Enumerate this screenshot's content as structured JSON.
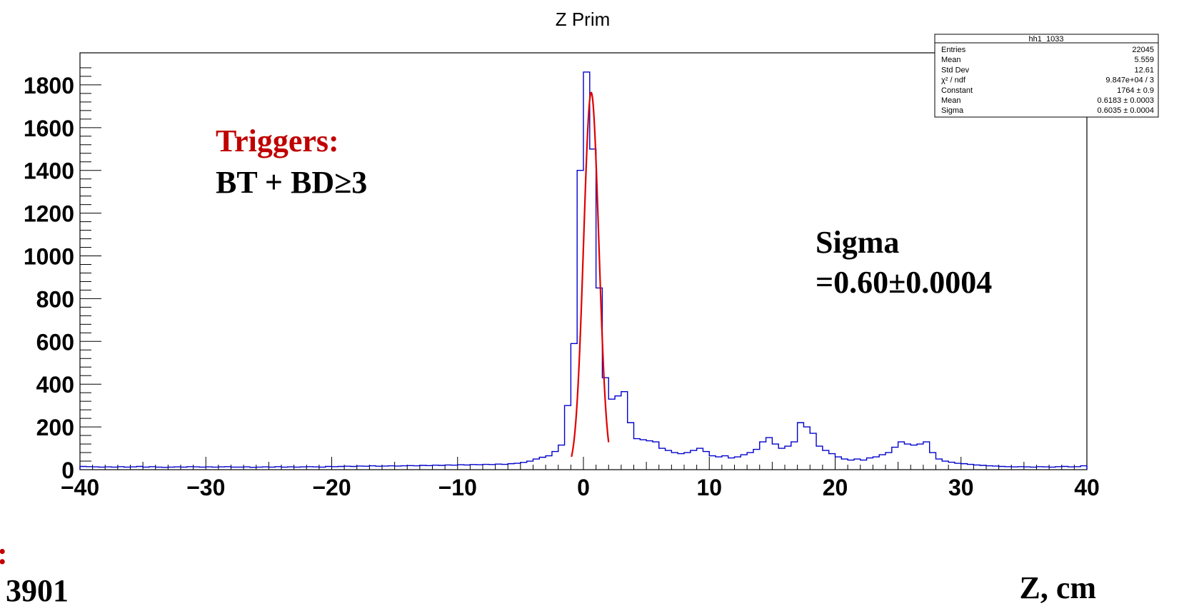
{
  "chart_data": {
    "type": "histogram",
    "title": "Z Prim",
    "xlabel": "Z, cm",
    "ylabel": "",
    "xlim": [
      -40,
      40
    ],
    "ylim": [
      0,
      1950
    ],
    "x_ticks": [
      -40,
      -30,
      -20,
      -10,
      0,
      10,
      20,
      30,
      40
    ],
    "x_tick_labels": [
      "−40",
      "−30",
      "−20",
      "−10",
      "0",
      "10",
      "20",
      "30",
      "40"
    ],
    "y_ticks": [
      0,
      200,
      400,
      600,
      800,
      1000,
      1200,
      1400,
      1600,
      1800
    ],
    "y_tick_labels": [
      "0",
      "200",
      "400",
      "600",
      "800",
      "1000",
      "1200",
      "1400",
      "1600",
      "1800"
    ],
    "bin_width": 0.5,
    "histogram_color": "#0000cc",
    "fit_color": "#e00000",
    "histogram": {
      "name": "hh1_1033",
      "x_edges": [
        -40,
        40
      ],
      "bins": [
        [
          -40.0,
          15
        ],
        [
          -39.5,
          14
        ],
        [
          -39.0,
          13
        ],
        [
          -38.5,
          12
        ],
        [
          -38.0,
          13
        ],
        [
          -37.5,
          12
        ],
        [
          -37.0,
          14
        ],
        [
          -36.5,
          12
        ],
        [
          -36.0,
          13
        ],
        [
          -35.5,
          15
        ],
        [
          -35.0,
          12
        ],
        [
          -34.5,
          14
        ],
        [
          -34.0,
          12
        ],
        [
          -33.5,
          11
        ],
        [
          -33.0,
          12
        ],
        [
          -32.5,
          13
        ],
        [
          -32.0,
          12
        ],
        [
          -31.5,
          14
        ],
        [
          -31.0,
          13
        ],
        [
          -30.5,
          12
        ],
        [
          -30.0,
          13
        ],
        [
          -29.5,
          12
        ],
        [
          -29.0,
          13
        ],
        [
          -28.5,
          14
        ],
        [
          -28.0,
          12
        ],
        [
          -27.5,
          12
        ],
        [
          -27.0,
          13
        ],
        [
          -26.5,
          11
        ],
        [
          -26.0,
          12
        ],
        [
          -25.5,
          13
        ],
        [
          -25.0,
          12
        ],
        [
          -24.5,
          14
        ],
        [
          -24.0,
          12
        ],
        [
          -23.5,
          13
        ],
        [
          -23.0,
          12
        ],
        [
          -22.5,
          13
        ],
        [
          -22.0,
          14
        ],
        [
          -21.5,
          13
        ],
        [
          -21.0,
          12
        ],
        [
          -20.5,
          15
        ],
        [
          -20.0,
          14
        ],
        [
          -19.5,
          15
        ],
        [
          -19.0,
          16
        ],
        [
          -18.5,
          15
        ],
        [
          -18.0,
          17
        ],
        [
          -17.5,
          16
        ],
        [
          -17.0,
          18
        ],
        [
          -16.5,
          16
        ],
        [
          -16.0,
          17
        ],
        [
          -15.5,
          18
        ],
        [
          -15.0,
          17
        ],
        [
          -14.5,
          18
        ],
        [
          -14.0,
          19
        ],
        [
          -13.5,
          18
        ],
        [
          -13.0,
          20
        ],
        [
          -12.5,
          19
        ],
        [
          -12.0,
          21
        ],
        [
          -11.5,
          20
        ],
        [
          -11.0,
          22
        ],
        [
          -10.5,
          21
        ],
        [
          -10.0,
          23
        ],
        [
          -9.5,
          22
        ],
        [
          -9.0,
          24
        ],
        [
          -8.5,
          23
        ],
        [
          -8.0,
          25
        ],
        [
          -7.5,
          24
        ],
        [
          -7.0,
          26
        ],
        [
          -6.5,
          25
        ],
        [
          -6.0,
          28
        ],
        [
          -5.5,
          30
        ],
        [
          -5.0,
          34
        ],
        [
          -4.5,
          40
        ],
        [
          -4.0,
          50
        ],
        [
          -3.5,
          58
        ],
        [
          -3.0,
          65
        ],
        [
          -2.5,
          85
        ],
        [
          -2.0,
          115
        ],
        [
          -1.5,
          300
        ],
        [
          -1.0,
          590
        ],
        [
          -0.5,
          1400
        ],
        [
          0.0,
          1860
        ],
        [
          0.5,
          1500
        ],
        [
          1.0,
          850
        ],
        [
          1.5,
          430
        ],
        [
          2.0,
          330
        ],
        [
          2.5,
          345
        ],
        [
          3.0,
          365
        ],
        [
          3.5,
          220
        ],
        [
          4.0,
          145
        ],
        [
          4.5,
          140
        ],
        [
          5.0,
          135
        ],
        [
          5.5,
          130
        ],
        [
          6.0,
          100
        ],
        [
          6.5,
          90
        ],
        [
          7.0,
          80
        ],
        [
          7.5,
          75
        ],
        [
          8.0,
          80
        ],
        [
          8.5,
          90
        ],
        [
          9.0,
          100
        ],
        [
          9.5,
          85
        ],
        [
          10.0,
          65
        ],
        [
          10.5,
          60
        ],
        [
          11.0,
          65
        ],
        [
          11.5,
          55
        ],
        [
          12.0,
          60
        ],
        [
          12.5,
          70
        ],
        [
          13.0,
          80
        ],
        [
          13.5,
          95
        ],
        [
          14.0,
          130
        ],
        [
          14.5,
          150
        ],
        [
          15.0,
          120
        ],
        [
          15.5,
          100
        ],
        [
          16.0,
          110
        ],
        [
          16.5,
          130
        ],
        [
          17.0,
          220
        ],
        [
          17.5,
          200
        ],
        [
          18.0,
          170
        ],
        [
          18.5,
          110
        ],
        [
          19.0,
          90
        ],
        [
          19.5,
          75
        ],
        [
          20.0,
          60
        ],
        [
          20.5,
          50
        ],
        [
          21.0,
          45
        ],
        [
          21.5,
          50
        ],
        [
          22.0,
          45
        ],
        [
          22.5,
          55
        ],
        [
          23.0,
          60
        ],
        [
          23.5,
          70
        ],
        [
          24.0,
          80
        ],
        [
          24.5,
          105
        ],
        [
          25.0,
          130
        ],
        [
          25.5,
          120
        ],
        [
          26.0,
          115
        ],
        [
          26.5,
          120
        ],
        [
          27.0,
          130
        ],
        [
          27.5,
          80
        ],
        [
          28.0,
          50
        ],
        [
          28.5,
          40
        ],
        [
          29.0,
          35
        ],
        [
          29.5,
          30
        ],
        [
          30.0,
          28
        ],
        [
          30.5,
          25
        ],
        [
          31.0,
          22
        ],
        [
          31.5,
          20
        ],
        [
          32.0,
          18
        ],
        [
          32.5,
          17
        ],
        [
          33.0,
          15
        ],
        [
          33.5,
          14
        ],
        [
          34.0,
          13
        ],
        [
          34.5,
          14
        ],
        [
          35.0,
          13
        ],
        [
          35.5,
          12
        ],
        [
          36.0,
          14
        ],
        [
          36.5,
          13
        ],
        [
          37.0,
          12
        ],
        [
          37.5,
          14
        ],
        [
          38.0,
          15
        ],
        [
          38.5,
          13
        ],
        [
          39.0,
          14
        ],
        [
          39.5,
          18
        ]
      ]
    },
    "fit": {
      "function": "gaus",
      "constant": 1764,
      "mean": 0.6183,
      "sigma": 0.6035,
      "x_range": [
        -0.95,
        2.0
      ]
    }
  },
  "stats_box": {
    "title": "hh1_1033",
    "rows": [
      {
        "label": "Entries",
        "value": "22045"
      },
      {
        "label": "Mean",
        "value": "5.559"
      },
      {
        "label": "Std Dev",
        "value": "12.61"
      },
      {
        "label": "χ² / ndf",
        "value": "9.847e+04 / 3"
      },
      {
        "label": "Constant",
        "value": "1764 ± 0.9"
      },
      {
        "label": "Mean",
        "value": "0.6183 ± 0.0003"
      },
      {
        "label": "Sigma",
        "value": "0.6035 ± 0.0004"
      }
    ]
  },
  "annotations": {
    "triggers_label": "Triggers:",
    "triggers_value": "BT + BD≥3",
    "sigma_label": "Sigma",
    "sigma_value": "=0.60±0.0004",
    "bottom_left_text": "3901",
    "bottom_left_red_mark": ":"
  }
}
